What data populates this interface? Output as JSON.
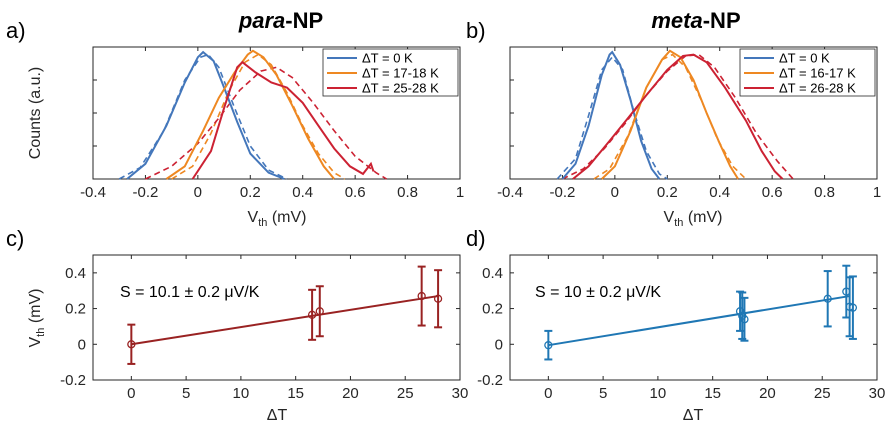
{
  "panels": {
    "a_label": "a)",
    "b_label": "b)",
    "c_label": "c)",
    "d_label": "d)",
    "a_title_italic": "para",
    "a_title_rest": "-NP",
    "b_title_italic": "meta",
    "b_title_rest": "-NP"
  },
  "chart_data": [
    {
      "id": "a",
      "type": "line",
      "xlabel_main": "V",
      "xlabel_sub": "th",
      "xlabel_unit": " (mV)",
      "ylabel": "Counts (a.u.)",
      "xlim": [
        -0.4,
        1
      ],
      "ylim": [
        0,
        1.04
      ],
      "xticks": [
        -0.4,
        -0.2,
        0,
        0.2,
        0.4,
        0.6,
        0.8,
        1
      ],
      "xtick_labels": [
        "-0.4",
        "-0.2",
        "0",
        "0.2",
        "0.4",
        "0.6",
        "0.8",
        "1"
      ],
      "legend_position": "top-right",
      "series": [
        {
          "name": "ΔT = 0 K",
          "color": "#4477BB",
          "measured": [
            [
              -0.27,
              0.0
            ],
            [
              -0.2,
              0.12
            ],
            [
              -0.12,
              0.42
            ],
            [
              -0.05,
              0.76
            ],
            [
              0.0,
              0.96
            ],
            [
              0.02,
              1.0
            ],
            [
              0.06,
              0.93
            ],
            [
              0.1,
              0.72
            ],
            [
              0.15,
              0.45
            ],
            [
              0.2,
              0.2
            ],
            [
              0.27,
              0.05
            ],
            [
              0.33,
              0.0
            ]
          ],
          "fit": [
            [
              -0.3,
              0.0
            ],
            [
              -0.22,
              0.09
            ],
            [
              -0.13,
              0.38
            ],
            [
              -0.05,
              0.78
            ],
            [
              0.01,
              0.96
            ],
            [
              0.04,
              0.98
            ],
            [
              0.08,
              0.88
            ],
            [
              0.14,
              0.56
            ],
            [
              0.2,
              0.26
            ],
            [
              0.27,
              0.07
            ],
            [
              0.34,
              0.0
            ]
          ]
        },
        {
          "name": "ΔT = 17-18 K",
          "color": "#EE8822",
          "measured": [
            [
              -0.12,
              0.0
            ],
            [
              -0.05,
              0.1
            ],
            [
              0.02,
              0.38
            ],
            [
              0.08,
              0.64
            ],
            [
              0.14,
              0.84
            ],
            [
              0.19,
              0.98
            ],
            [
              0.21,
              1.01
            ],
            [
              0.25,
              0.96
            ],
            [
              0.3,
              0.82
            ],
            [
              0.36,
              0.58
            ],
            [
              0.42,
              0.32
            ],
            [
              0.48,
              0.1
            ],
            [
              0.52,
              0.0
            ]
          ],
          "fit": [
            [
              -0.1,
              0.0
            ],
            [
              -0.02,
              0.1
            ],
            [
              0.05,
              0.36
            ],
            [
              0.12,
              0.7
            ],
            [
              0.18,
              0.92
            ],
            [
              0.23,
              0.98
            ],
            [
              0.28,
              0.9
            ],
            [
              0.34,
              0.68
            ],
            [
              0.4,
              0.42
            ],
            [
              0.46,
              0.2
            ],
            [
              0.52,
              0.05
            ],
            [
              0.56,
              0.0
            ]
          ]
        },
        {
          "name": "ΔT = 25-28 K",
          "color": "#CC2233",
          "measured": [
            [
              -0.02,
              0.0
            ],
            [
              0.05,
              0.22
            ],
            [
              0.1,
              0.56
            ],
            [
              0.15,
              0.88
            ],
            [
              0.17,
              0.92
            ],
            [
              0.22,
              0.84
            ],
            [
              0.28,
              0.76
            ],
            [
              0.34,
              0.72
            ],
            [
              0.4,
              0.6
            ],
            [
              0.46,
              0.42
            ],
            [
              0.52,
              0.24
            ],
            [
              0.58,
              0.1
            ],
            [
              0.63,
              0.04
            ],
            [
              0.66,
              0.12
            ],
            [
              0.67,
              0.06
            ]
          ],
          "fit": [
            [
              -0.2,
              0.0
            ],
            [
              -0.1,
              0.1
            ],
            [
              0.0,
              0.28
            ],
            [
              0.08,
              0.48
            ],
            [
              0.16,
              0.7
            ],
            [
              0.24,
              0.85
            ],
            [
              0.3,
              0.88
            ],
            [
              0.36,
              0.8
            ],
            [
              0.44,
              0.6
            ],
            [
              0.52,
              0.38
            ],
            [
              0.6,
              0.18
            ],
            [
              0.68,
              0.05
            ],
            [
              0.72,
              0.0
            ]
          ]
        }
      ]
    },
    {
      "id": "b",
      "type": "line",
      "xlabel_main": "V",
      "xlabel_sub": "th",
      "xlabel_unit": " (mV)",
      "xlim": [
        -0.4,
        1
      ],
      "ylim": [
        0,
        1.04
      ],
      "xticks": [
        -0.4,
        -0.2,
        0,
        0.2,
        0.4,
        0.6,
        0.8,
        1
      ],
      "xtick_labels": [
        "-0.4",
        "-0.2",
        "0",
        "0.2",
        "0.4",
        "0.6",
        "0.8",
        "1"
      ],
      "legend_position": "top-right",
      "series": [
        {
          "name": "ΔT = 0 K",
          "color": "#4477BB",
          "measured": [
            [
              -0.2,
              0.0
            ],
            [
              -0.15,
              0.12
            ],
            [
              -0.1,
              0.42
            ],
            [
              -0.05,
              0.82
            ],
            [
              -0.02,
              0.98
            ],
            [
              -0.01,
              1.0
            ],
            [
              0.02,
              0.9
            ],
            [
              0.06,
              0.62
            ],
            [
              0.1,
              0.3
            ],
            [
              0.14,
              0.08
            ],
            [
              0.17,
              0.0
            ]
          ],
          "fit": [
            [
              -0.22,
              0.0
            ],
            [
              -0.15,
              0.16
            ],
            [
              -0.1,
              0.5
            ],
            [
              -0.05,
              0.86
            ],
            [
              -0.01,
              0.96
            ],
            [
              0.03,
              0.86
            ],
            [
              0.07,
              0.55
            ],
            [
              0.12,
              0.22
            ],
            [
              0.17,
              0.04
            ],
            [
              0.2,
              0.0
            ]
          ]
        },
        {
          "name": "ΔT = 16-17 K",
          "color": "#EE8822",
          "measured": [
            [
              -0.05,
              0.0
            ],
            [
              0.0,
              0.1
            ],
            [
              0.06,
              0.38
            ],
            [
              0.12,
              0.72
            ],
            [
              0.18,
              0.94
            ],
            [
              0.21,
              1.01
            ],
            [
              0.25,
              0.96
            ],
            [
              0.3,
              0.78
            ],
            [
              0.35,
              0.52
            ],
            [
              0.4,
              0.28
            ],
            [
              0.44,
              0.1
            ],
            [
              0.47,
              0.0
            ]
          ],
          "fit": [
            [
              -0.08,
              0.0
            ],
            [
              -0.02,
              0.08
            ],
            [
              0.05,
              0.34
            ],
            [
              0.12,
              0.72
            ],
            [
              0.18,
              0.94
            ],
            [
              0.22,
              0.98
            ],
            [
              0.27,
              0.88
            ],
            [
              0.33,
              0.62
            ],
            [
              0.39,
              0.32
            ],
            [
              0.45,
              0.1
            ],
            [
              0.5,
              0.0
            ]
          ]
        },
        {
          "name": "ΔT = 26-28 K",
          "color": "#CC2233",
          "measured": [
            [
              -0.16,
              0.0
            ],
            [
              -0.1,
              0.1
            ],
            [
              -0.02,
              0.3
            ],
            [
              0.05,
              0.48
            ],
            [
              0.12,
              0.66
            ],
            [
              0.2,
              0.86
            ],
            [
              0.26,
              0.97
            ],
            [
              0.3,
              0.98
            ],
            [
              0.35,
              0.92
            ],
            [
              0.42,
              0.72
            ],
            [
              0.5,
              0.46
            ],
            [
              0.56,
              0.22
            ],
            [
              0.61,
              0.06
            ],
            [
              0.64,
              0.0
            ]
          ],
          "fit": [
            [
              -0.2,
              0.0
            ],
            [
              -0.12,
              0.08
            ],
            [
              -0.04,
              0.24
            ],
            [
              0.04,
              0.44
            ],
            [
              0.12,
              0.66
            ],
            [
              0.2,
              0.85
            ],
            [
              0.27,
              0.97
            ],
            [
              0.32,
              0.98
            ],
            [
              0.38,
              0.88
            ],
            [
              0.46,
              0.64
            ],
            [
              0.54,
              0.36
            ],
            [
              0.62,
              0.14
            ],
            [
              0.68,
              0.0
            ]
          ]
        }
      ]
    },
    {
      "id": "c",
      "type": "scatter",
      "color": "#992222",
      "xlabel": "ΔT",
      "ylabel_main": "V",
      "ylabel_sub": "th",
      "ylabel_unit": " (mV)",
      "annotation": "S = 10.1 ± 0.2 μV/K",
      "xlim": [
        -3.5,
        30
      ],
      "ylim": [
        -0.2,
        0.5
      ],
      "xticks": [
        0,
        5,
        10,
        15,
        20,
        25,
        30
      ],
      "xtick_labels": [
        "0",
        "5",
        "10",
        "15",
        "20",
        "25",
        "30"
      ],
      "yticks": [
        -0.2,
        0,
        0.2,
        0.4
      ],
      "ytick_labels": [
        "-0.2",
        "0",
        "0.2",
        "0.4"
      ],
      "points": [
        {
          "x": 0,
          "y": 0.0,
          "err": 0.11
        },
        {
          "x": 16.5,
          "y": 0.165,
          "err": 0.14
        },
        {
          "x": 17.2,
          "y": 0.185,
          "err": 0.14
        },
        {
          "x": 26.5,
          "y": 0.27,
          "err": 0.165
        },
        {
          "x": 28,
          "y": 0.255,
          "err": 0.16
        }
      ],
      "fit_line": [
        [
          0,
          0.0
        ],
        [
          28,
          0.27
        ]
      ]
    },
    {
      "id": "d",
      "type": "scatter",
      "color": "#1F77B4",
      "xlabel": "ΔT",
      "annotation": "S = 10 ± 0.2 μV/K",
      "xlim": [
        -3.5,
        30
      ],
      "ylim": [
        -0.2,
        0.5
      ],
      "xticks": [
        0,
        5,
        10,
        15,
        20,
        25,
        30
      ],
      "xtick_labels": [
        "0",
        "5",
        "10",
        "15",
        "20",
        "25",
        "30"
      ],
      "yticks": [
        -0.2,
        0,
        0.2,
        0.4
      ],
      "ytick_labels": [
        "-0.2",
        "0",
        "0.2",
        "0.4"
      ],
      "points": [
        {
          "x": 0,
          "y": -0.005,
          "err": 0.08
        },
        {
          "x": 17.5,
          "y": 0.185,
          "err": 0.11
        },
        {
          "x": 17.7,
          "y": 0.16,
          "err": 0.13
        },
        {
          "x": 17.9,
          "y": 0.14,
          "err": 0.12
        },
        {
          "x": 25.5,
          "y": 0.255,
          "err": 0.155
        },
        {
          "x": 27.2,
          "y": 0.295,
          "err": 0.145
        },
        {
          "x": 27.5,
          "y": 0.21,
          "err": 0.165
        },
        {
          "x": 27.8,
          "y": 0.205,
          "err": 0.175
        }
      ],
      "fit_line": [
        [
          0,
          -0.005
        ],
        [
          27.5,
          0.27
        ]
      ]
    }
  ]
}
